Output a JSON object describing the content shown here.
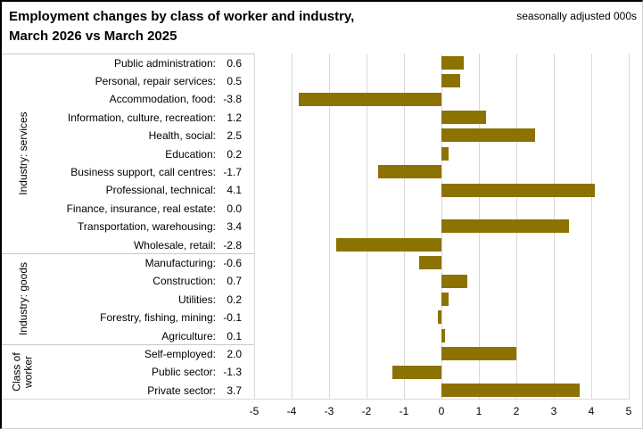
{
  "header": {
    "title_line1": "Employment changes by class of worker and industry,",
    "title_line2": "March 2026 vs March 2025",
    "note": "seasonally adjusted 000s"
  },
  "chart_data": {
    "type": "bar",
    "orientation": "horizontal",
    "title": "Employment changes by class of worker and industry, March 2026 vs March 2025",
    "note": "seasonally adjusted 000s",
    "xlim": [
      -5,
      5
    ],
    "x_ticks": [
      -5,
      -4,
      -3,
      -2,
      -1,
      0,
      1,
      2,
      3,
      4,
      5
    ],
    "grid": true,
    "legend": "none",
    "bar_color": "#8C7200",
    "gridline_color": "#D9D9D9",
    "separator_color": "#C9C9C9",
    "groups": [
      {
        "group": "Industry: services",
        "rows": [
          {
            "label": "Public administration",
            "value": 0.6,
            "value_label": "0.6"
          },
          {
            "label": "Personal, repair services",
            "value": 0.5,
            "value_label": "0.5"
          },
          {
            "label": "Accommodation, food",
            "value": -3.8,
            "value_label": "-3.8"
          },
          {
            "label": "Information, culture, recreation",
            "value": 1.2,
            "value_label": "1.2"
          },
          {
            "label": "Health, social",
            "value": 2.5,
            "value_label": "2.5"
          },
          {
            "label": "Education",
            "value": 0.2,
            "value_label": "0.2"
          },
          {
            "label": "Business support, call centres",
            "value": -1.7,
            "value_label": "-1.7"
          },
          {
            "label": "Professional, technical",
            "value": 4.1,
            "value_label": "4.1"
          },
          {
            "label": "Finance, insurance, real estate",
            "value": 0.0,
            "value_label": "0.0"
          },
          {
            "label": "Transportation, warehousing",
            "value": 3.4,
            "value_label": "3.4"
          },
          {
            "label": "Wholesale, retail",
            "value": -2.8,
            "value_label": "-2.8"
          }
        ]
      },
      {
        "group": "Industry: goods",
        "rows": [
          {
            "label": "Manufacturing",
            "value": -0.6,
            "value_label": "-0.6"
          },
          {
            "label": "Construction",
            "value": 0.7,
            "value_label": "0.7"
          },
          {
            "label": "Utilities",
            "value": 0.2,
            "value_label": "0.2"
          },
          {
            "label": "Forestry, fishing, mining",
            "value": -0.1,
            "value_label": "-0.1"
          },
          {
            "label": "Agriculture",
            "value": 0.1,
            "value_label": "0.1"
          }
        ]
      },
      {
        "group": "Class of worker",
        "rows": [
          {
            "label": "Self-employed",
            "value": 2.0,
            "value_label": "2.0"
          },
          {
            "label": "Public sector",
            "value": -1.3,
            "value_label": "-1.3"
          },
          {
            "label": "Private sector",
            "value": 3.7,
            "value_label": "3.7"
          }
        ]
      }
    ]
  }
}
